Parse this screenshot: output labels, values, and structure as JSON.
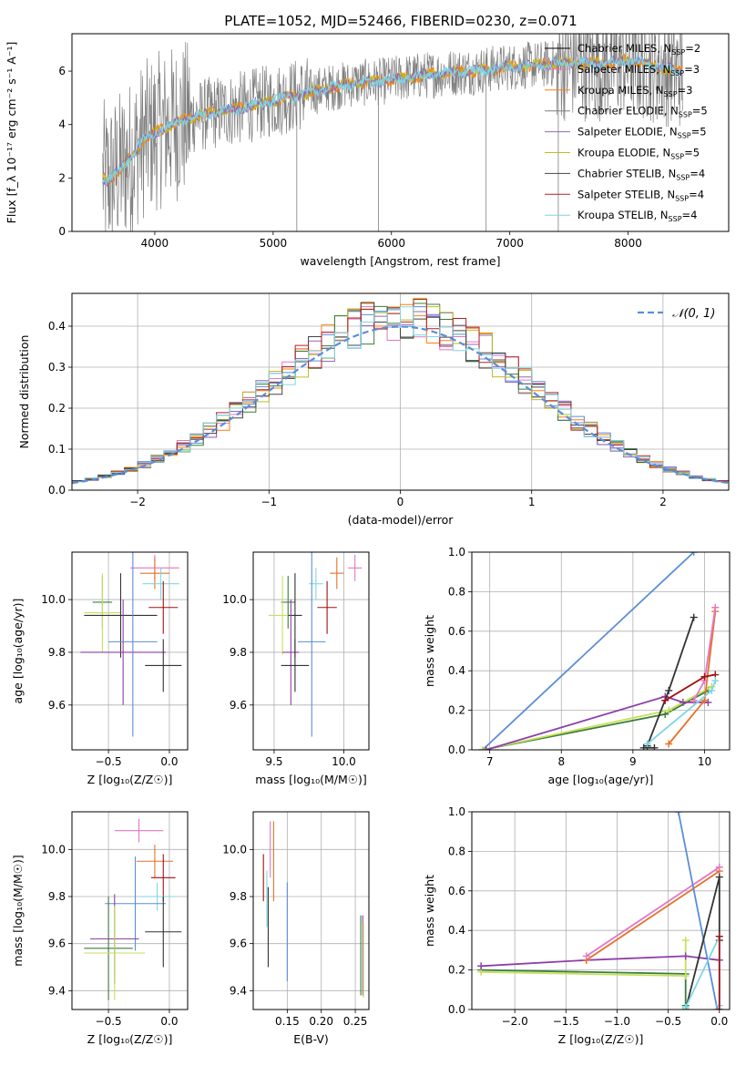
{
  "title": "PLATE=1052, MJD=52466, FIBERID=0230, z=0.071",
  "colors": {
    "Chabrier MILES": "#000000",
    "Salpeter MILES": "#e377c2",
    "Kroupa MILES": "#ff7f0e",
    "Chabrier ELODIE": "#7f7f7f",
    "Salpeter ELODIE": "#9467bd",
    "Kroupa ELODIE": "#bcbd22",
    "Chabrier STELIB": "#444444",
    "Salpeter STELIB": "#b22222",
    "Kroupa STELIB": "#17becf",
    "normal": "#5b8dd9",
    "blue": "#5b8dd9",
    "green": "#3a7d3a",
    "lime": "#c6e05a",
    "orange": "#e8702a",
    "purple": "#8e3ea8",
    "pink": "#e377c2",
    "dark": "#333333",
    "red": "#a01010",
    "cyan": "#7fd6e6"
  },
  "chart_data": [
    {
      "id": "spectrum",
      "type": "line",
      "xlabel": "wavelength [Angstrom, rest frame]",
      "ylabel": "Flux [f_λ 10⁻¹⁷ erg cm⁻² s⁻¹ A⁻¹]",
      "xlim": [
        3300,
        8850
      ],
      "ylim": [
        0,
        7.4
      ],
      "xticks": [
        "4000",
        "5000",
        "6000",
        "7000",
        "8000"
      ],
      "yticks": [
        "0",
        "2",
        "4",
        "6"
      ],
      "legend_position": "right",
      "legend": [
        {
          "label": "Chabrier MILES, N",
          "sub": "SSP",
          "suffix": "=2",
          "color": "#000000"
        },
        {
          "label": "Salpeter MILES, N",
          "sub": "SSP",
          "suffix": "=3",
          "color": "#e377c2"
        },
        {
          "label": "Kroupa MILES, N",
          "sub": "SSP",
          "suffix": "=3",
          "color": "#ff7f0e"
        },
        {
          "label": "Chabrier ELODIE, N",
          "sub": "SSP",
          "suffix": "=5",
          "color": "#7f7f7f"
        },
        {
          "label": "Salpeter ELODIE, N",
          "sub": "SSP",
          "suffix": "=5",
          "color": "#9467bd"
        },
        {
          "label": "Kroupa ELODIE, N",
          "sub": "SSP",
          "suffix": "=5",
          "color": "#bcbd22"
        },
        {
          "label": "Chabrier STELIB, N",
          "sub": "SSP",
          "suffix": "=4",
          "color": "#444444"
        },
        {
          "label": "Salpeter STELIB, N",
          "sub": "SSP",
          "suffix": "=4",
          "color": "#b22222"
        },
        {
          "label": "Kroupa STELIB, N",
          "sub": "SSP",
          "suffix": "=4",
          "color": "#7fd6e6"
        }
      ],
      "continuum": {
        "x": [
          3560,
          3600,
          3700,
          3800,
          3900,
          4000,
          4100,
          4200,
          4300,
          4500,
          4700,
          4900,
          5100,
          5300,
          5500,
          5700,
          5900,
          6100,
          6300,
          6500,
          6700,
          6900,
          7100,
          7300,
          7420,
          7600,
          7800,
          8000,
          8200,
          8400,
          8460
        ],
        "y": [
          2.0,
          1.9,
          2.3,
          2.8,
          3.4,
          3.7,
          3.9,
          4.1,
          4.25,
          4.45,
          4.6,
          4.8,
          5.0,
          5.2,
          5.4,
          5.55,
          5.6,
          5.75,
          5.85,
          5.95,
          6.0,
          6.1,
          6.2,
          6.25,
          6.3,
          6.3,
          6.3,
          6.4,
          6.25,
          6.0,
          6.0
        ]
      },
      "dropouts": [
        {
          "x": 5200,
          "y": 0
        },
        {
          "x": 5890,
          "y": 0
        },
        {
          "x": 6800,
          "y": 0
        },
        {
          "x": 7410,
          "y": 0
        }
      ]
    },
    {
      "id": "residuals",
      "type": "line",
      "xlabel": "(data-model)/error",
      "ylabel": "Normed distribution",
      "xlim": [
        -2.5,
        2.5
      ],
      "ylim": [
        0,
        0.48
      ],
      "xticks": [
        -2,
        -1,
        0,
        1,
        2
      ],
      "xtick_labels": [
        "−2",
        "−1",
        "0",
        "1",
        "2"
      ],
      "yticks": [
        0.0,
        0.1,
        0.2,
        0.3,
        0.4
      ],
      "ytick_labels": [
        "0.0",
        "0.1",
        "0.2",
        "0.3",
        "0.4"
      ],
      "grid": true,
      "legend_position": "top-right",
      "legend": [
        {
          "label": "𝒩(0, 1)",
          "style": "dashed",
          "color": "#5b8dd9"
        }
      ],
      "bin_width": 0.1,
      "bin_start": -2.5
    },
    {
      "id": "z-vs-age",
      "type": "scatter",
      "xlabel": "Z [log₁₀(Z/Z☉)]",
      "ylabel": "age  [log₁₀(age/yr)]",
      "xlim": [
        -0.8,
        0.15
      ],
      "ylim": [
        9.43,
        10.18
      ],
      "xticks": [
        -0.5,
        0.0
      ],
      "xtick_labels": [
        "−0.5",
        "0.0"
      ],
      "yticks": [
        9.6,
        9.8,
        10.0
      ],
      "ytick_labels": [
        "9.6",
        "9.8",
        "10.0"
      ],
      "grid": true,
      "points": [
        {
          "x": -0.12,
          "y": 10.12,
          "xerr": 0.2,
          "yerr": 0.05,
          "c": "pink"
        },
        {
          "x": -0.12,
          "y": 10.1,
          "xerr": 0.12,
          "yerr": 0.06,
          "c": "orange"
        },
        {
          "x": -0.07,
          "y": 10.06,
          "xerr": 0.15,
          "yerr": 0.06,
          "c": "cyan"
        },
        {
          "x": -0.55,
          "y": 9.99,
          "xerr": 0.08,
          "yerr": 0.1,
          "c": "green"
        },
        {
          "x": -0.55,
          "y": 9.95,
          "xerr": 0.15,
          "yerr": 0.15,
          "c": "lime"
        },
        {
          "x": -0.05,
          "y": 9.97,
          "xerr": 0.12,
          "yerr": 0.1,
          "c": "red"
        },
        {
          "x": -0.4,
          "y": 9.94,
          "xerr": 0.3,
          "yerr": 0.16,
          "c": "dark"
        },
        {
          "x": -0.38,
          "y": 9.8,
          "xerr": 0.35,
          "yerr": 0.2,
          "c": "purple"
        },
        {
          "x": -0.3,
          "y": 9.84,
          "xerr": 0.2,
          "yerr": 0.36,
          "c": "blue"
        },
        {
          "x": -0.05,
          "y": 9.75,
          "xerr": 0.15,
          "yerr": 0.1,
          "c": "dark"
        }
      ]
    },
    {
      "id": "mass-vs-age",
      "type": "scatter",
      "xlabel": "mass [log₁₀(M/M☉)]",
      "ylabel": "",
      "xlim": [
        9.35,
        10.18
      ],
      "ylim": [
        9.43,
        10.18
      ],
      "xticks": [
        9.5,
        10.0
      ],
      "xtick_labels": [
        "9.5",
        "10.0"
      ],
      "yticks": [
        9.6,
        9.8,
        10.0
      ],
      "ytick_labels": [
        "9.6",
        "9.8",
        "10.0"
      ],
      "grid": true,
      "points": [
        {
          "x": 10.08,
          "y": 10.12,
          "xerr": 0.05,
          "yerr": 0.05,
          "c": "pink"
        },
        {
          "x": 9.95,
          "y": 10.1,
          "xerr": 0.05,
          "yerr": 0.06,
          "c": "orange"
        },
        {
          "x": 9.8,
          "y": 10.06,
          "xerr": 0.05,
          "yerr": 0.06,
          "c": "cyan"
        },
        {
          "x": 9.6,
          "y": 9.99,
          "xerr": 0.05,
          "yerr": 0.1,
          "c": "green"
        },
        {
          "x": 9.56,
          "y": 9.94,
          "xerr": 0.1,
          "yerr": 0.15,
          "c": "lime"
        },
        {
          "x": 9.88,
          "y": 9.97,
          "xerr": 0.07,
          "yerr": 0.1,
          "c": "red"
        },
        {
          "x": 9.65,
          "y": 9.94,
          "xerr": 0.05,
          "yerr": 0.16,
          "c": "dark"
        },
        {
          "x": 9.62,
          "y": 9.8,
          "xerr": 0.06,
          "yerr": 0.2,
          "c": "purple"
        },
        {
          "x": 9.77,
          "y": 9.84,
          "xerr": 0.1,
          "yerr": 0.36,
          "c": "blue"
        },
        {
          "x": 9.65,
          "y": 9.75,
          "xerr": 0.1,
          "yerr": 0.1,
          "c": "dark"
        }
      ]
    },
    {
      "id": "age-vs-weight",
      "type": "line",
      "xlabel": "age  [log₁₀(age/yr)]",
      "ylabel": "mass weight",
      "xlim": [
        6.75,
        10.35
      ],
      "ylim": [
        0,
        1
      ],
      "xticks": [
        7,
        8,
        9,
        10
      ],
      "xtick_labels": [
        "7",
        "8",
        "9",
        "10"
      ],
      "yticks": [
        0,
        0.2,
        0.4,
        0.6,
        0.8,
        1.0
      ],
      "ytick_labels": [
        "0.0",
        "0.2",
        "0.4",
        "0.6",
        "0.8",
        "1.0"
      ],
      "grid": true,
      "series": [
        {
          "c": "blue",
          "x": [
            6.9,
            9.85
          ],
          "y": [
            0.0,
            1.0
          ]
        },
        {
          "c": "green",
          "x": [
            6.9,
            9.45,
            10.05
          ],
          "y": [
            0.0,
            0.18,
            0.3
          ]
        },
        {
          "c": "lime",
          "x": [
            6.9,
            9.5,
            10.1
          ],
          "y": [
            0.0,
            0.2,
            0.32
          ]
        },
        {
          "c": "purple",
          "x": [
            6.95,
            9.45,
            9.7,
            10.05
          ],
          "y": [
            0.0,
            0.27,
            0.24,
            0.24
          ]
        },
        {
          "c": "dark",
          "x": [
            9.2,
            9.5,
            9.85
          ],
          "y": [
            0.02,
            0.3,
            0.67
          ]
        },
        {
          "c": "orange",
          "x": [
            9.5,
            10.0,
            10.15
          ],
          "y": [
            0.03,
            0.25,
            0.7
          ]
        },
        {
          "c": "pink",
          "x": [
            9.85,
            10.0,
            10.15
          ],
          "y": [
            0.25,
            0.35,
            0.72
          ]
        },
        {
          "c": "red",
          "x": [
            9.45,
            10.0,
            10.15
          ],
          "y": [
            0.25,
            0.37,
            0.38
          ]
        },
        {
          "c": "cyan",
          "x": [
            9.2,
            10.1,
            10.15
          ],
          "y": [
            0.03,
            0.3,
            0.35
          ]
        },
        {
          "c": "dark",
          "x": [
            9.15,
            9.3
          ],
          "y": [
            0.01,
            0.01
          ]
        }
      ]
    },
    {
      "id": "z-vs-mass",
      "type": "scatter",
      "xlabel": "Z [log₁₀(Z/Z☉)]",
      "ylabel": "mass [log₁₀(M/M☉)]",
      "xlim": [
        -0.8,
        0.15
      ],
      "ylim": [
        9.32,
        10.16
      ],
      "xticks": [
        -0.5,
        0.0
      ],
      "xtick_labels": [
        "−0.5",
        "0.0"
      ],
      "yticks": [
        9.4,
        9.6,
        9.8,
        10.0
      ],
      "ytick_labels": [
        "9.4",
        "9.6",
        "9.8",
        "10.0"
      ],
      "grid": true,
      "points": [
        {
          "x": -0.25,
          "y": 10.08,
          "xerr": 0.2,
          "yerr": 0.05,
          "c": "pink"
        },
        {
          "x": -0.12,
          "y": 9.95,
          "xerr": 0.15,
          "yerr": 0.07,
          "c": "orange"
        },
        {
          "x": -0.05,
          "y": 9.88,
          "xerr": 0.1,
          "yerr": 0.1,
          "c": "red"
        },
        {
          "x": -0.1,
          "y": 9.8,
          "xerr": 0.15,
          "yerr": 0.06,
          "c": "cyan"
        },
        {
          "x": -0.28,
          "y": 9.77,
          "xerr": 0.25,
          "yerr": 0.2,
          "c": "blue"
        },
        {
          "x": -0.05,
          "y": 9.65,
          "xerr": 0.15,
          "yerr": 0.15,
          "c": "dark"
        },
        {
          "x": -0.45,
          "y": 9.62,
          "xerr": 0.2,
          "yerr": 0.19,
          "c": "purple"
        },
        {
          "x": -0.5,
          "y": 9.58,
          "xerr": 0.2,
          "yerr": 0.22,
          "c": "green"
        },
        {
          "x": -0.45,
          "y": 9.56,
          "xerr": 0.25,
          "yerr": 0.2,
          "c": "lime"
        }
      ]
    },
    {
      "id": "ebv-vs-mass",
      "type": "scatter",
      "xlabel": "E(B-V)",
      "ylabel": "",
      "xlim": [
        0.1,
        0.27
      ],
      "ylim": [
        9.32,
        10.16
      ],
      "xticks": [
        0.15,
        0.2,
        0.25
      ],
      "xtick_labels": [
        "0.15",
        "0.20",
        "0.25"
      ],
      "yticks": [
        9.4,
        9.6,
        9.8,
        10.0
      ],
      "ytick_labels": [
        "9.4",
        "9.6",
        "9.8",
        "10.0"
      ],
      "grid": true,
      "points": [
        {
          "x": 0.125,
          "y": 10.0,
          "xerr": 0,
          "yerr": 0.12,
          "c": "pink"
        },
        {
          "x": 0.13,
          "y": 9.95,
          "xerr": 0,
          "yerr": 0.17,
          "c": "orange"
        },
        {
          "x": 0.115,
          "y": 9.88,
          "xerr": 0,
          "yerr": 0.1,
          "c": "red"
        },
        {
          "x": 0.12,
          "y": 9.79,
          "xerr": 0,
          "yerr": 0.12,
          "c": "cyan"
        },
        {
          "x": 0.122,
          "y": 9.67,
          "xerr": 0,
          "yerr": 0.17,
          "c": "dark"
        },
        {
          "x": 0.15,
          "y": 9.65,
          "xerr": 0,
          "yerr": 0.21,
          "c": "blue"
        },
        {
          "x": 0.258,
          "y": 9.55,
          "xerr": 0,
          "yerr": 0.17,
          "c": "green"
        },
        {
          "x": 0.261,
          "y": 9.55,
          "xerr": 0,
          "yerr": 0.17,
          "c": "purple"
        },
        {
          "x": 0.262,
          "y": 9.53,
          "xerr": 0,
          "yerr": 0.16,
          "c": "lime"
        }
      ]
    },
    {
      "id": "z-vs-weight",
      "type": "line",
      "xlabel": "Z [log₁₀(Z/Z☉)]",
      "ylabel": "mass weight",
      "xlim": [
        -2.42,
        0.1
      ],
      "ylim": [
        0,
        1
      ],
      "xticks": [
        -2.0,
        -1.5,
        -1.0,
        -0.5,
        0.0
      ],
      "xtick_labels": [
        "−2.0",
        "−1.5",
        "−1.0",
        "−0.5",
        "0.0"
      ],
      "yticks": [
        0,
        0.2,
        0.4,
        0.6,
        0.8,
        1.0
      ],
      "ytick_labels": [
        "0.0",
        "0.2",
        "0.4",
        "0.6",
        "0.8",
        "1.0"
      ],
      "grid": true,
      "series": [
        {
          "c": "green",
          "x": [
            -2.33,
            -0.33,
            -0.33
          ],
          "y": [
            0.2,
            0.18,
            0.02
          ]
        },
        {
          "c": "lime",
          "x": [
            -2.33,
            -0.33,
            -0.33
          ],
          "y": [
            0.19,
            0.17,
            0.35
          ]
        },
        {
          "c": "purple",
          "x": [
            -2.33,
            -1.3,
            -0.33,
            0.0
          ],
          "y": [
            0.22,
            0.25,
            0.27,
            0.25
          ]
        },
        {
          "c": "orange",
          "x": [
            -1.3,
            0.0
          ],
          "y": [
            0.25,
            0.7
          ]
        },
        {
          "c": "pink",
          "x": [
            -1.3,
            0.0
          ],
          "y": [
            0.27,
            0.72
          ]
        },
        {
          "c": "blue",
          "x": [
            -0.4,
            -0.02
          ],
          "y": [
            1.0,
            0.0
          ]
        },
        {
          "c": "dark",
          "x": [
            -0.33,
            0.0,
            0.0
          ],
          "y": [
            0.0,
            0.67,
            0.35
          ]
        },
        {
          "c": "cyan",
          "x": [
            -0.33,
            0.0,
            0.0
          ],
          "y": [
            0.01,
            0.37,
            0.02
          ]
        },
        {
          "c": "red",
          "x": [
            0.0,
            0.0
          ],
          "y": [
            0.0,
            0.37
          ]
        }
      ]
    }
  ]
}
